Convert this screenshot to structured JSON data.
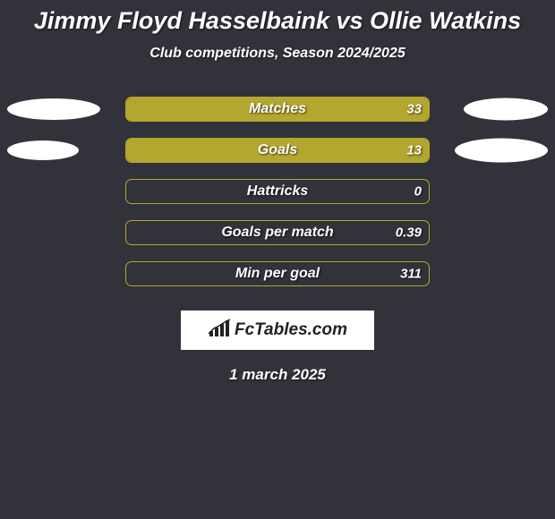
{
  "title": {
    "text": "Jimmy Floyd Hasselbaink vs Ollie Watkins",
    "fontsize": 27,
    "color": "#ffffff"
  },
  "subtitle": {
    "text": "Club competitions, Season 2024/2025",
    "fontsize": 16,
    "color": "#ffffff"
  },
  "background_color": "#32323a",
  "bar_border_color": "#b3a72f",
  "bar_fill_color": "#b3a72f",
  "ellipse_color": "#ffffff",
  "stats": [
    {
      "label": "Matches",
      "value": "33",
      "fill_pct": 100,
      "left_ellipse_w": 104,
      "left_ellipse_h": 24,
      "right_ellipse_w": 94,
      "right_ellipse_h": 25,
      "label_fontsize": 16,
      "value_fontsize": 15
    },
    {
      "label": "Goals",
      "value": "13",
      "fill_pct": 100,
      "left_ellipse_w": 80,
      "left_ellipse_h": 22,
      "right_ellipse_w": 104,
      "right_ellipse_h": 27,
      "label_fontsize": 16,
      "value_fontsize": 15
    },
    {
      "label": "Hattricks",
      "value": "0",
      "fill_pct": 0,
      "left_ellipse_w": 0,
      "left_ellipse_h": 0,
      "right_ellipse_w": 0,
      "right_ellipse_h": 0,
      "label_fontsize": 16,
      "value_fontsize": 15
    },
    {
      "label": "Goals per match",
      "value": "0.39",
      "fill_pct": 0,
      "left_ellipse_w": 0,
      "left_ellipse_h": 0,
      "right_ellipse_w": 0,
      "right_ellipse_h": 0,
      "label_fontsize": 16,
      "value_fontsize": 15
    },
    {
      "label": "Min per goal",
      "value": "311",
      "fill_pct": 0,
      "left_ellipse_w": 0,
      "left_ellipse_h": 0,
      "right_ellipse_w": 0,
      "right_ellipse_h": 0,
      "label_fontsize": 16,
      "value_fontsize": 15
    }
  ],
  "logo": {
    "text": "FcTables.com",
    "fontsize": 19,
    "box_bg": "#ffffff",
    "text_color": "#222222",
    "icon_color": "#222222"
  },
  "date": {
    "text": "1 march 2025",
    "fontsize": 17,
    "color": "#ffffff"
  }
}
